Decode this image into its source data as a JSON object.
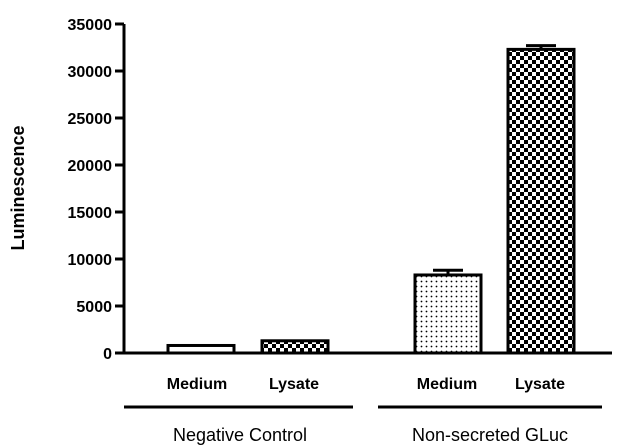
{
  "chart_data": {
    "type": "bar",
    "ylabel": "Luminescence",
    "ylim": [
      0,
      35000
    ],
    "yticks": [
      "0",
      "5000",
      "10000",
      "15000",
      "20000",
      "25000",
      "30000",
      "35000"
    ],
    "bars": [
      {
        "category": "Medium",
        "group": "Negative Control",
        "value": 800,
        "error": 0,
        "pattern": "hollow"
      },
      {
        "category": "Lysate",
        "group": "Negative Control",
        "value": 1300,
        "error": 0,
        "pattern": "checker"
      },
      {
        "category": "Medium",
        "group": "Non-secreted GLuc",
        "value": 8300,
        "error": 500,
        "pattern": "dots"
      },
      {
        "category": "Lysate",
        "group": "Non-secreted GLuc",
        "value": 32300,
        "error": 400,
        "pattern": "checker"
      }
    ],
    "groups": [
      "Negative Control",
      "Non-secreted GLuc"
    ],
    "grid": false,
    "legend": "none"
  }
}
